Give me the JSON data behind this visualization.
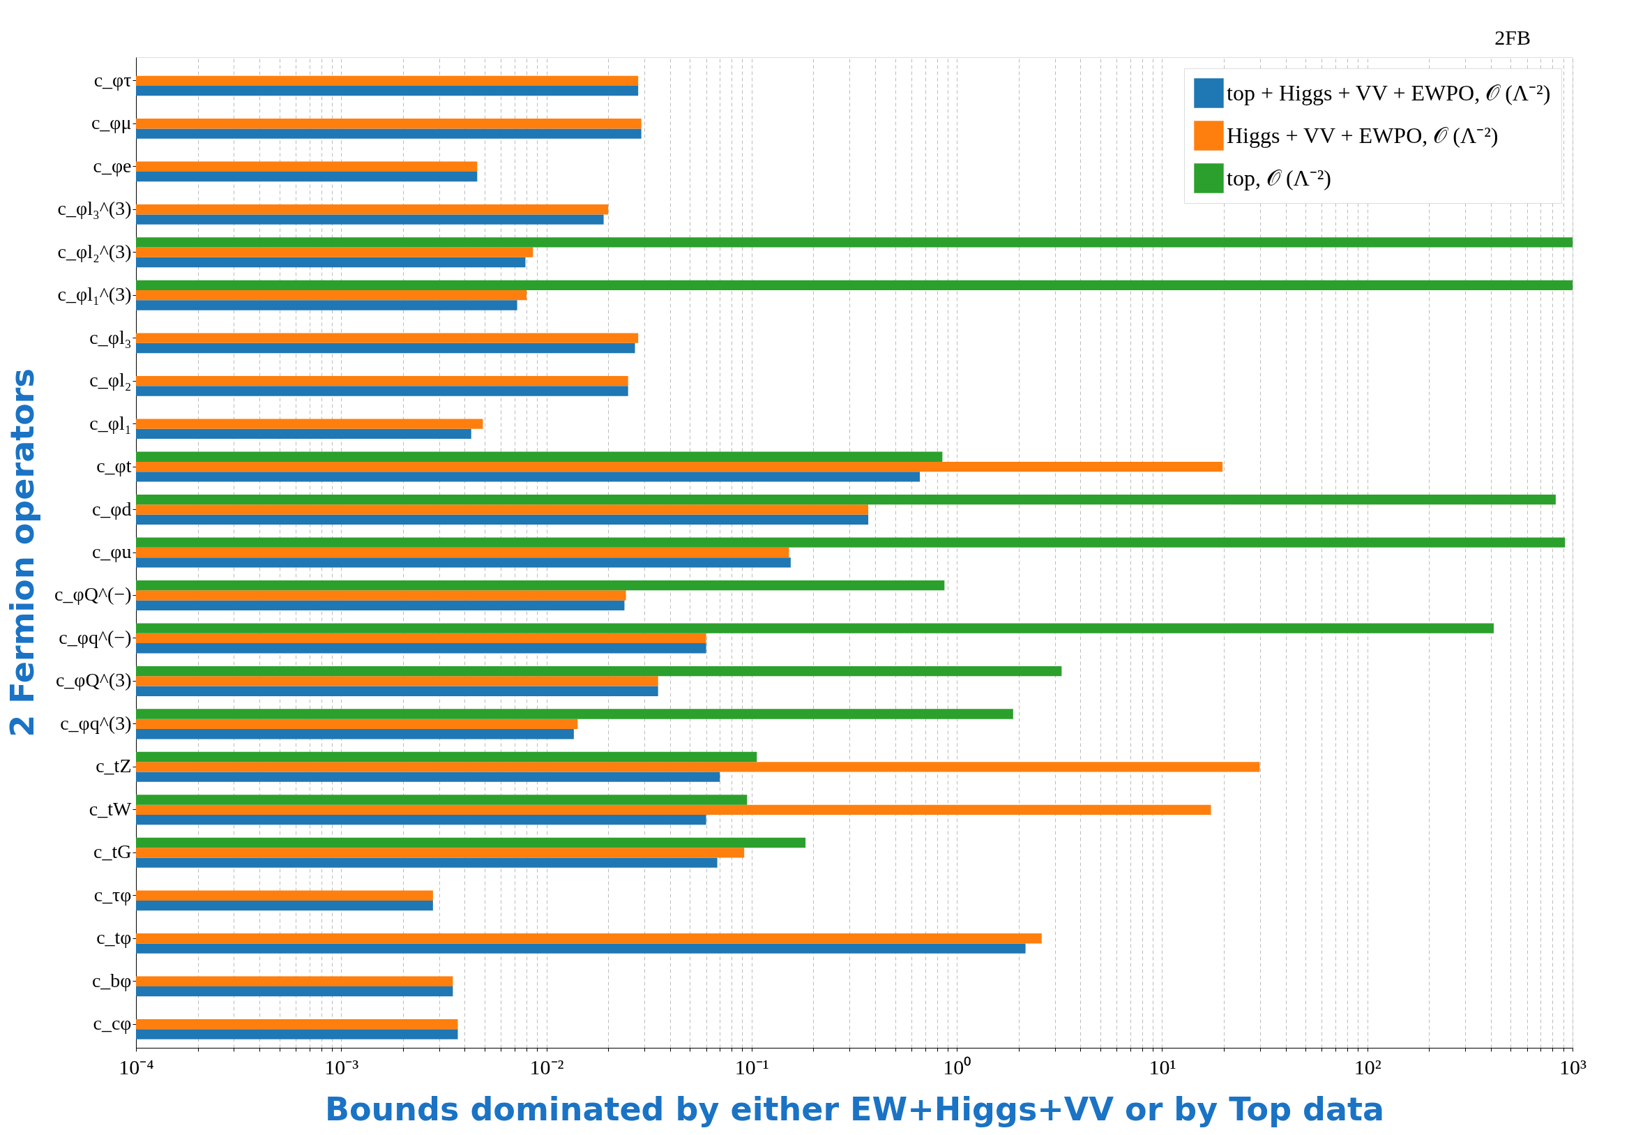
{
  "chart_data": {
    "type": "bar",
    "orientation": "horizontal",
    "xlabel": "Bounds dominated by either EW+Higgs+VV or by Top data",
    "ylabel": "2 Fermion operators",
    "annotations": [
      "2FB"
    ],
    "categories": [
      "c_φτ",
      "c_φμ",
      "c_φe",
      "c_φl₃^(3)",
      "c_φl₂^(3)",
      "c_φl₁^(3)",
      "c_φl₃",
      "c_φl₂",
      "c_φl₁",
      "c_φt",
      "c_φd",
      "c_φu",
      "c_φQ^(−)",
      "c_φq^(−)",
      "c_φQ^(3)",
      "c_φq^(3)",
      "c_tZ",
      "c_tW",
      "c_tG",
      "c_τφ",
      "c_tφ",
      "c_bφ",
      "c_cφ"
    ],
    "series": [
      {
        "name": "top + Higgs + VV + EWPO, 𝒪 (Λ⁻²)",
        "color": "#1f77b4",
        "values": [
          0.028,
          0.029,
          0.0046,
          0.019,
          0.0079,
          0.0072,
          0.027,
          0.025,
          0.0043,
          0.66,
          0.37,
          0.155,
          0.024,
          0.06,
          0.035,
          0.0136,
          0.07,
          0.06,
          0.068,
          0.0028,
          2.16,
          0.0035,
          0.0037
        ]
      },
      {
        "name": "Higgs + VV + EWPO, 𝒪 (Λ⁻²)",
        "color": "#ff7f0e",
        "values": [
          0.028,
          0.029,
          0.0046,
          0.02,
          0.0086,
          0.008,
          0.028,
          0.025,
          0.0049,
          19.7,
          0.37,
          0.152,
          0.0244,
          0.06,
          0.035,
          0.0142,
          29.9,
          17.3,
          0.092,
          0.0028,
          2.59,
          0.0035,
          0.0037
        ]
      },
      {
        "name": "top, 𝒪 (Λ⁻²)",
        "color": "#2ca02c",
        "values": [
          null,
          null,
          null,
          null,
          1000,
          1000,
          null,
          null,
          null,
          0.85,
          828,
          919,
          0.87,
          413,
          3.24,
          1.88,
          0.106,
          0.095,
          0.183,
          null,
          null,
          null,
          null
        ]
      }
    ],
    "log": "x",
    "xlim": [
      0.0001,
      1000
    ],
    "xticks": [
      {
        "value": 0.0001,
        "label": "10⁻⁴"
      },
      {
        "value": 0.0002,
        "label": null
      },
      {
        "value": 0.0003,
        "label": null
      },
      {
        "value": 0.0004,
        "label": null
      },
      {
        "value": 0.0005,
        "label": null
      },
      {
        "value": 0.0006,
        "label": null
      },
      {
        "value": 0.0007,
        "label": null
      },
      {
        "value": 0.0008,
        "label": null
      },
      {
        "value": 0.0009,
        "label": null
      },
      {
        "value": 0.001,
        "label": "10⁻³"
      },
      {
        "value": 0.002,
        "label": null
      },
      {
        "value": 0.003,
        "label": null
      },
      {
        "value": 0.004,
        "label": null
      },
      {
        "value": 0.005,
        "label": null
      },
      {
        "value": 0.006,
        "label": null
      },
      {
        "value": 0.007,
        "label": null
      },
      {
        "value": 0.008,
        "label": null
      },
      {
        "value": 0.009,
        "label": null
      },
      {
        "value": 0.01,
        "label": "10⁻²"
      },
      {
        "value": 0.02,
        "label": null
      },
      {
        "value": 0.03,
        "label": null
      },
      {
        "value": 0.04,
        "label": null
      },
      {
        "value": 0.05,
        "label": null
      },
      {
        "value": 0.06,
        "label": null
      },
      {
        "value": 0.07,
        "label": null
      },
      {
        "value": 0.08,
        "label": null
      },
      {
        "value": 0.09,
        "label": null
      },
      {
        "value": 0.1,
        "label": "10⁻¹"
      },
      {
        "value": 0.2,
        "label": null
      },
      {
        "value": 0.3,
        "label": null
      },
      {
        "value": 0.4,
        "label": null
      },
      {
        "value": 0.5,
        "label": null
      },
      {
        "value": 0.6,
        "label": null
      },
      {
        "value": 0.7,
        "label": null
      },
      {
        "value": 0.8,
        "label": null
      },
      {
        "value": 0.9,
        "label": null
      },
      {
        "value": 1,
        "label": "10⁰"
      },
      {
        "value": 2,
        "label": null
      },
      {
        "value": 3,
        "label": null
      },
      {
        "value": 4,
        "label": null
      },
      {
        "value": 5,
        "label": null
      },
      {
        "value": 6,
        "label": null
      },
      {
        "value": 7,
        "label": null
      },
      {
        "value": 8,
        "label": null
      },
      {
        "value": 9,
        "label": null
      },
      {
        "value": 10,
        "label": "10¹"
      },
      {
        "value": 20,
        "label": null
      },
      {
        "value": 30,
        "label": null
      },
      {
        "value": 40,
        "label": null
      },
      {
        "value": 50,
        "label": null
      },
      {
        "value": 60,
        "label": null
      },
      {
        "value": 70,
        "label": null
      },
      {
        "value": 80,
        "label": null
      },
      {
        "value": 90,
        "label": null
      },
      {
        "value": 100,
        "label": "10²"
      },
      {
        "value": 200,
        "label": null
      },
      {
        "value": 300,
        "label": null
      },
      {
        "value": 400,
        "label": null
      },
      {
        "value": 500,
        "label": null
      },
      {
        "value": 600,
        "label": null
      },
      {
        "value": 700,
        "label": null
      },
      {
        "value": 800,
        "label": null
      },
      {
        "value": 900,
        "label": null
      },
      {
        "value": 1000,
        "label": "10³"
      }
    ],
    "grid": "x",
    "legend": "top right"
  }
}
